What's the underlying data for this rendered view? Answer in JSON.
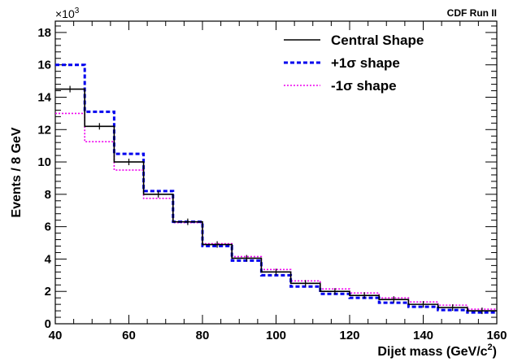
{
  "chart_data": {
    "type": "line",
    "title": "",
    "annotation": "CDF Run II",
    "xlabel": "Dijet mass (GeV/c",
    "xlabel_sup": "2",
    "xlabel_close": ")",
    "ylabel": "Events / 8 GeV",
    "yscale_label": "×10",
    "yscale_exp": "3",
    "xlim": [
      40,
      160
    ],
    "ylim": [
      0,
      18.7
    ],
    "x_ticks": [
      "40",
      "60",
      "80",
      "100",
      "120",
      "140",
      "160"
    ],
    "y_ticks": [
      "0",
      "2",
      "4",
      "6",
      "8",
      "10",
      "12",
      "14",
      "16",
      "18"
    ],
    "bin_edges": [
      40,
      48,
      56,
      64,
      72,
      80,
      88,
      96,
      104,
      112,
      120,
      128,
      136,
      144,
      152,
      160
    ],
    "series": [
      {
        "name": "Central Shape",
        "color": "#000000",
        "dash": "solid",
        "values": [
          14.5,
          12.2,
          10.0,
          8.0,
          6.3,
          4.9,
          4.05,
          3.2,
          2.5,
          2.0,
          1.75,
          1.5,
          1.2,
          1.0,
          0.8
        ],
        "errors": true
      },
      {
        "name": "+1σ shape",
        "color": "#0000ee",
        "dash": "dotted",
        "values": [
          16.0,
          13.1,
          10.5,
          8.2,
          6.3,
          4.8,
          3.9,
          3.0,
          2.3,
          1.85,
          1.6,
          1.3,
          1.05,
          0.85,
          0.7
        ],
        "errors": false
      },
      {
        "name": "-1σ shape",
        "color": "#ee00ee",
        "dash": "dotted-fine",
        "values": [
          13.0,
          11.25,
          9.5,
          7.75,
          6.25,
          4.95,
          4.15,
          3.35,
          2.65,
          2.15,
          1.9,
          1.6,
          1.35,
          1.15,
          0.9
        ],
        "errors": false
      }
    ],
    "legend_position": "top-right",
    "grid": false
  }
}
